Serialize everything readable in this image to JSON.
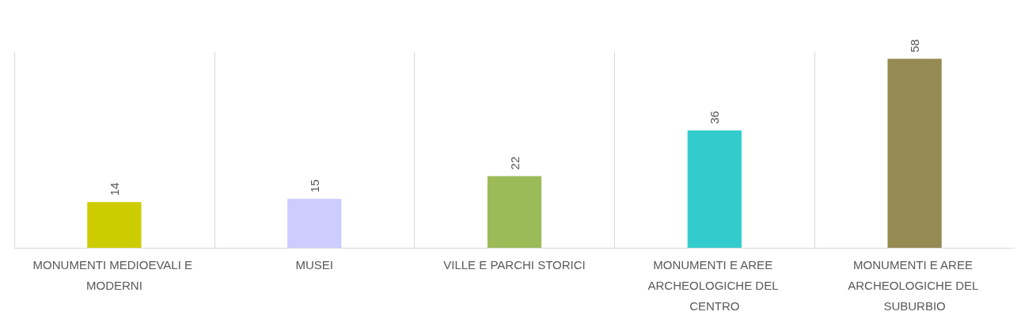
{
  "chart_data": {
    "type": "bar",
    "categories": [
      "MONUMENTI MEDIOEVALI E MODERNI",
      "MUSEI",
      "VILLE E PARCHI STORICI",
      "MONUMENTI E AREE ARCHEOLOGICHE DEL CENTRO",
      "MONUMENTI E AREE ARCHEOLOGICHE DEL SUBURBIO"
    ],
    "values": [
      14,
      15,
      22,
      36,
      58
    ],
    "colors": [
      "#cccc00",
      "#ccccff",
      "#9bbb59",
      "#33cccc",
      "#958b52"
    ],
    "data_labels": true,
    "grid": "x"
  }
}
